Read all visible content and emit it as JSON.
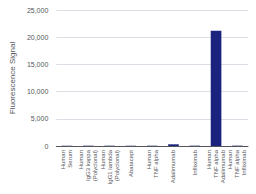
{
  "chart_data": {
    "type": "bar",
    "ylabel": "Fluorescence Signal",
    "categories": [
      "Human\nSerum",
      "Human\nIgG3 kappa\n(Polyclonal)",
      "Human\nIgG1 lambda\n(Polyclonal)",
      "Abatacept",
      "Human\nTNF alpha",
      "Adalimumab",
      "Infliximab",
      "Human\nTNF alpha\nAdalimumab",
      "Human\nTNF alpha\nInfliximab"
    ],
    "values": [
      50,
      60,
      55,
      50,
      55,
      310,
      60,
      21200,
      65
    ],
    "color": "#1a237e",
    "ylim": [
      0,
      25000
    ],
    "yticks": [
      0,
      {
        "value": 5000,
        "label": "5,000"
      },
      {
        "value": 10000,
        "label": "10,000"
      },
      {
        "value": 15000,
        "label": "15,000"
      },
      {
        "value": 20000,
        "label": "20,000"
      },
      {
        "value": 25000,
        "label": "25,000"
      }
    ],
    "grid": true
  }
}
